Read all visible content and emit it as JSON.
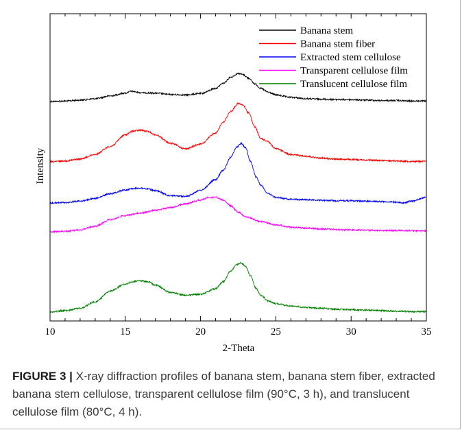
{
  "chart_data": {
    "type": "line",
    "xlabel": "2-Theta",
    "ylabel": "Intensity",
    "xlim": [
      10,
      35
    ],
    "xticks": [
      10,
      15,
      20,
      25,
      30,
      35
    ],
    "yticks_shown": false,
    "legend_position": "top-right",
    "series": [
      {
        "name": "Banana stem",
        "color": "#000000",
        "x": [
          10,
          11,
          12,
          13,
          14,
          15,
          15.4,
          16,
          17,
          18,
          19,
          20,
          21,
          21.5,
          22,
          22.5,
          22.8,
          23.2,
          23.6,
          24,
          24.5,
          25,
          26,
          27,
          28,
          29,
          30,
          31,
          32,
          33,
          34,
          35
        ],
        "y": [
          0.0,
          0.01,
          0.03,
          0.06,
          0.12,
          0.18,
          0.22,
          0.19,
          0.18,
          0.15,
          0.14,
          0.17,
          0.28,
          0.39,
          0.52,
          0.6,
          0.58,
          0.5,
          0.38,
          0.28,
          0.2,
          0.14,
          0.09,
          0.06,
          0.05,
          0.04,
          0.04,
          0.03,
          0.02,
          0.02,
          0.01,
          0.01
        ]
      },
      {
        "name": "Banana stem fiber",
        "color": "#ff0000",
        "x": [
          10,
          11,
          12,
          13,
          14,
          15,
          15.5,
          16,
          16.5,
          17,
          18,
          19,
          20,
          21,
          21.5,
          22,
          22.5,
          22.8,
          23.2,
          23.6,
          24,
          24.4,
          25,
          26,
          27,
          28,
          29,
          30,
          31,
          32,
          33,
          34,
          35
        ],
        "y": [
          0.0,
          0.02,
          0.06,
          0.16,
          0.33,
          0.58,
          0.66,
          0.68,
          0.65,
          0.58,
          0.4,
          0.28,
          0.38,
          0.62,
          0.85,
          1.08,
          1.25,
          1.22,
          1.05,
          0.75,
          0.5,
          0.45,
          0.28,
          0.16,
          0.12,
          0.08,
          0.06,
          0.05,
          0.04,
          0.03,
          0.02,
          0.01,
          0.01
        ]
      },
      {
        "name": "Extracted stem cellulose",
        "color": "#0000ff",
        "x": [
          10,
          11,
          12,
          13,
          14,
          15,
          15.5,
          16,
          16.5,
          17,
          18,
          19,
          20,
          21,
          21.5,
          22,
          22.4,
          22.7,
          23,
          23.3,
          23.7,
          24,
          24.5,
          25,
          26,
          27,
          28,
          29,
          30,
          31,
          32,
          33,
          33.5,
          34,
          35
        ],
        "y": [
          0.0,
          0.01,
          0.04,
          0.1,
          0.2,
          0.28,
          0.31,
          0.32,
          0.3,
          0.26,
          0.16,
          0.14,
          0.27,
          0.5,
          0.7,
          0.98,
          1.2,
          1.28,
          1.18,
          0.9,
          0.55,
          0.38,
          0.2,
          0.12,
          0.08,
          0.07,
          0.06,
          0.05,
          0.05,
          0.04,
          0.03,
          0.02,
          0.0,
          0.04,
          0.12
        ]
      },
      {
        "name": "Transparent cellulose film",
        "color": "#ff00ff",
        "x": [
          10,
          11,
          12,
          13,
          14,
          15,
          16,
          17,
          18,
          19,
          20,
          20.5,
          21,
          21.5,
          22,
          22.5,
          23,
          24,
          25,
          26,
          27,
          28,
          30,
          32,
          35
        ],
        "y": [
          0.0,
          0.01,
          0.04,
          0.12,
          0.26,
          0.35,
          0.4,
          0.46,
          0.52,
          0.6,
          0.68,
          0.73,
          0.74,
          0.68,
          0.56,
          0.42,
          0.32,
          0.22,
          0.15,
          0.1,
          0.08,
          0.06,
          0.04,
          0.03,
          0.02
        ]
      },
      {
        "name": "Translucent cellulose film",
        "color": "#008000",
        "x": [
          10,
          11,
          12,
          13,
          14,
          15,
          15.5,
          16,
          16.5,
          17,
          18,
          19,
          20,
          21,
          21.5,
          22,
          22.4,
          22.7,
          23,
          23.3,
          23.7,
          24,
          24.5,
          25,
          26,
          27,
          28,
          29,
          30,
          31,
          32,
          33,
          34,
          35
        ],
        "y": [
          0.0,
          0.03,
          0.08,
          0.22,
          0.45,
          0.6,
          0.65,
          0.67,
          0.65,
          0.58,
          0.42,
          0.36,
          0.38,
          0.5,
          0.65,
          0.88,
          1.02,
          1.05,
          0.98,
          0.78,
          0.5,
          0.36,
          0.24,
          0.18,
          0.13,
          0.1,
          0.08,
          0.06,
          0.05,
          0.04,
          0.03,
          0.02,
          0.01,
          0.01
        ]
      }
    ]
  },
  "caption": {
    "figure_label": "FIGURE 3",
    "separator": "|",
    "text": "X-ray diffraction profiles of banana stem, banana stem fiber, extracted banana stem cellulose, transparent cellulose film (90°C, 3 h), and translucent cellulose film (80°C, 4 h)."
  }
}
